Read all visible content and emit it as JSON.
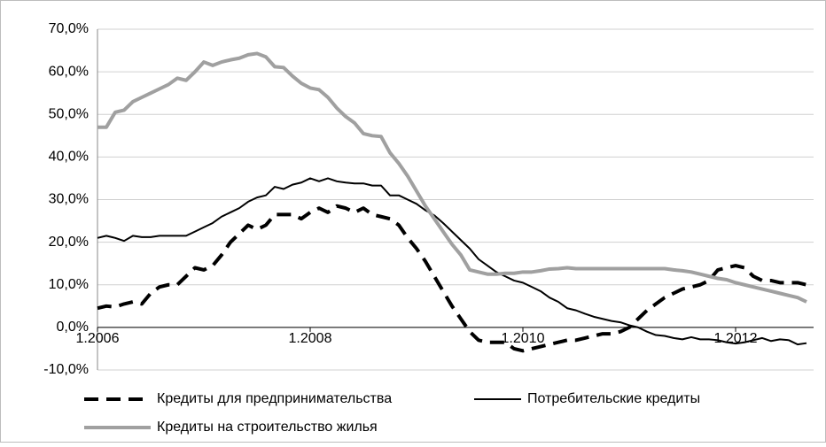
{
  "chart_data": {
    "type": "line",
    "categories": [
      "1.2006",
      null,
      null,
      null,
      null,
      null,
      null,
      null,
      null,
      null,
      null,
      null,
      null,
      null,
      null,
      null,
      null,
      null,
      null,
      null,
      null,
      null,
      null,
      null,
      "1.2008",
      null,
      null,
      null,
      null,
      null,
      null,
      null,
      null,
      null,
      null,
      null,
      null,
      null,
      null,
      null,
      null,
      null,
      null,
      null,
      null,
      null,
      null,
      null,
      "1.2010",
      null,
      null,
      null,
      null,
      null,
      null,
      null,
      null,
      null,
      null,
      null,
      null,
      null,
      null,
      null,
      null,
      null,
      null,
      null,
      null,
      null,
      null,
      null,
      "1.2012",
      null,
      null,
      null,
      null,
      null,
      null,
      null,
      null
    ],
    "ylim": [
      -10,
      70
    ],
    "yticks": [
      {
        "value": -10,
        "label": "-10,0%"
      },
      {
        "value": 0,
        "label": "0,0%"
      },
      {
        "value": 10,
        "label": "10,0%"
      },
      {
        "value": 20,
        "label": "20,0%"
      },
      {
        "value": 30,
        "label": "30,0%"
      },
      {
        "value": 40,
        "label": "40,0%"
      },
      {
        "value": 50,
        "label": "50,0%"
      },
      {
        "value": 60,
        "label": "60,0%"
      },
      {
        "value": 70,
        "label": "70,0%"
      }
    ],
    "grid": true,
    "legend": "bottom",
    "series": [
      {
        "name": "Кредиты для предпринимательства",
        "color": "#000000",
        "dashed": true,
        "values": [
          4.5,
          5,
          4.8,
          5.5,
          6,
          5.5,
          8,
          9.5,
          10,
          10,
          12,
          14,
          13.5,
          14.5,
          17,
          20,
          22,
          24,
          23,
          24,
          26.5,
          26.5,
          26.5,
          25.5,
          27,
          28,
          27,
          28.5,
          28,
          27,
          28,
          26.5,
          26,
          25.5,
          24,
          21,
          18.5,
          15.5,
          12,
          8.5,
          5,
          2,
          -1,
          -3,
          -3.5,
          -3.5,
          -3.5,
          -5,
          -5.5,
          -5,
          -4.5,
          -4,
          -3.5,
          -3,
          -3,
          -2.5,
          -2,
          -1.5,
          -1.5,
          -1,
          0,
          2,
          4,
          5.5,
          7,
          8,
          9,
          9.5,
          10,
          11,
          13.5,
          14,
          14.5,
          14,
          12,
          11,
          11,
          10.5,
          10.5,
          10.5,
          10
        ]
      },
      {
        "name": "Потребительские кредиты",
        "color": "#000000",
        "values": [
          21,
          21.5,
          21,
          20.3,
          21.5,
          21.2,
          21.2,
          21.5,
          21.5,
          21.5,
          21.5,
          22.5,
          23.5,
          24.5,
          26,
          27,
          28,
          29.5,
          30.5,
          31,
          33,
          32.5,
          33.5,
          34,
          35,
          34.3,
          35,
          34.3,
          34,
          33.8,
          33.8,
          33.3,
          33.3,
          31,
          31,
          30,
          29,
          27.5,
          26.3,
          24.5,
          22.5,
          20.5,
          18.5,
          16,
          14.5,
          13,
          12,
          11,
          10.5,
          9.5,
          8.5,
          7,
          6,
          4.5,
          4,
          3.2,
          2.5,
          2,
          1.5,
          1.2,
          0.5,
          0,
          -1,
          -1.8,
          -2,
          -2.5,
          -2.8,
          -2.3,
          -2.8,
          -2.8,
          -3,
          -3.5,
          -3.8,
          -3.5,
          -3,
          -2.5,
          -3.2,
          -2.8,
          -3,
          -4,
          -3.7
        ]
      },
      {
        "name": "Кредиты на строительство жилья",
        "color": "#a0a0a0",
        "values": [
          47,
          47,
          50.5,
          51,
          53,
          54,
          55,
          56,
          57,
          58.5,
          58,
          60,
          62.3,
          61.5,
          62.3,
          62.8,
          63.2,
          64,
          64.3,
          63.5,
          61.2,
          61,
          59,
          57.3,
          56.2,
          55.8,
          54,
          51.5,
          49.5,
          48,
          45.5,
          45,
          44.8,
          41,
          38.5,
          35.5,
          32,
          28.5,
          25.5,
          22.5,
          19.5,
          17,
          13.5,
          13,
          12.5,
          12.5,
          12.7,
          12.7,
          13,
          13,
          13.3,
          13.7,
          13.8,
          14,
          13.8,
          13.8,
          13.8,
          13.8,
          13.8,
          13.8,
          13.8,
          13.8,
          13.8,
          13.8,
          13.8,
          13.5,
          13.3,
          13,
          12.5,
          12,
          11.5,
          11.2,
          10.5,
          10,
          9.5,
          9,
          8.5,
          8,
          7.5,
          7,
          6
        ]
      }
    ]
  }
}
